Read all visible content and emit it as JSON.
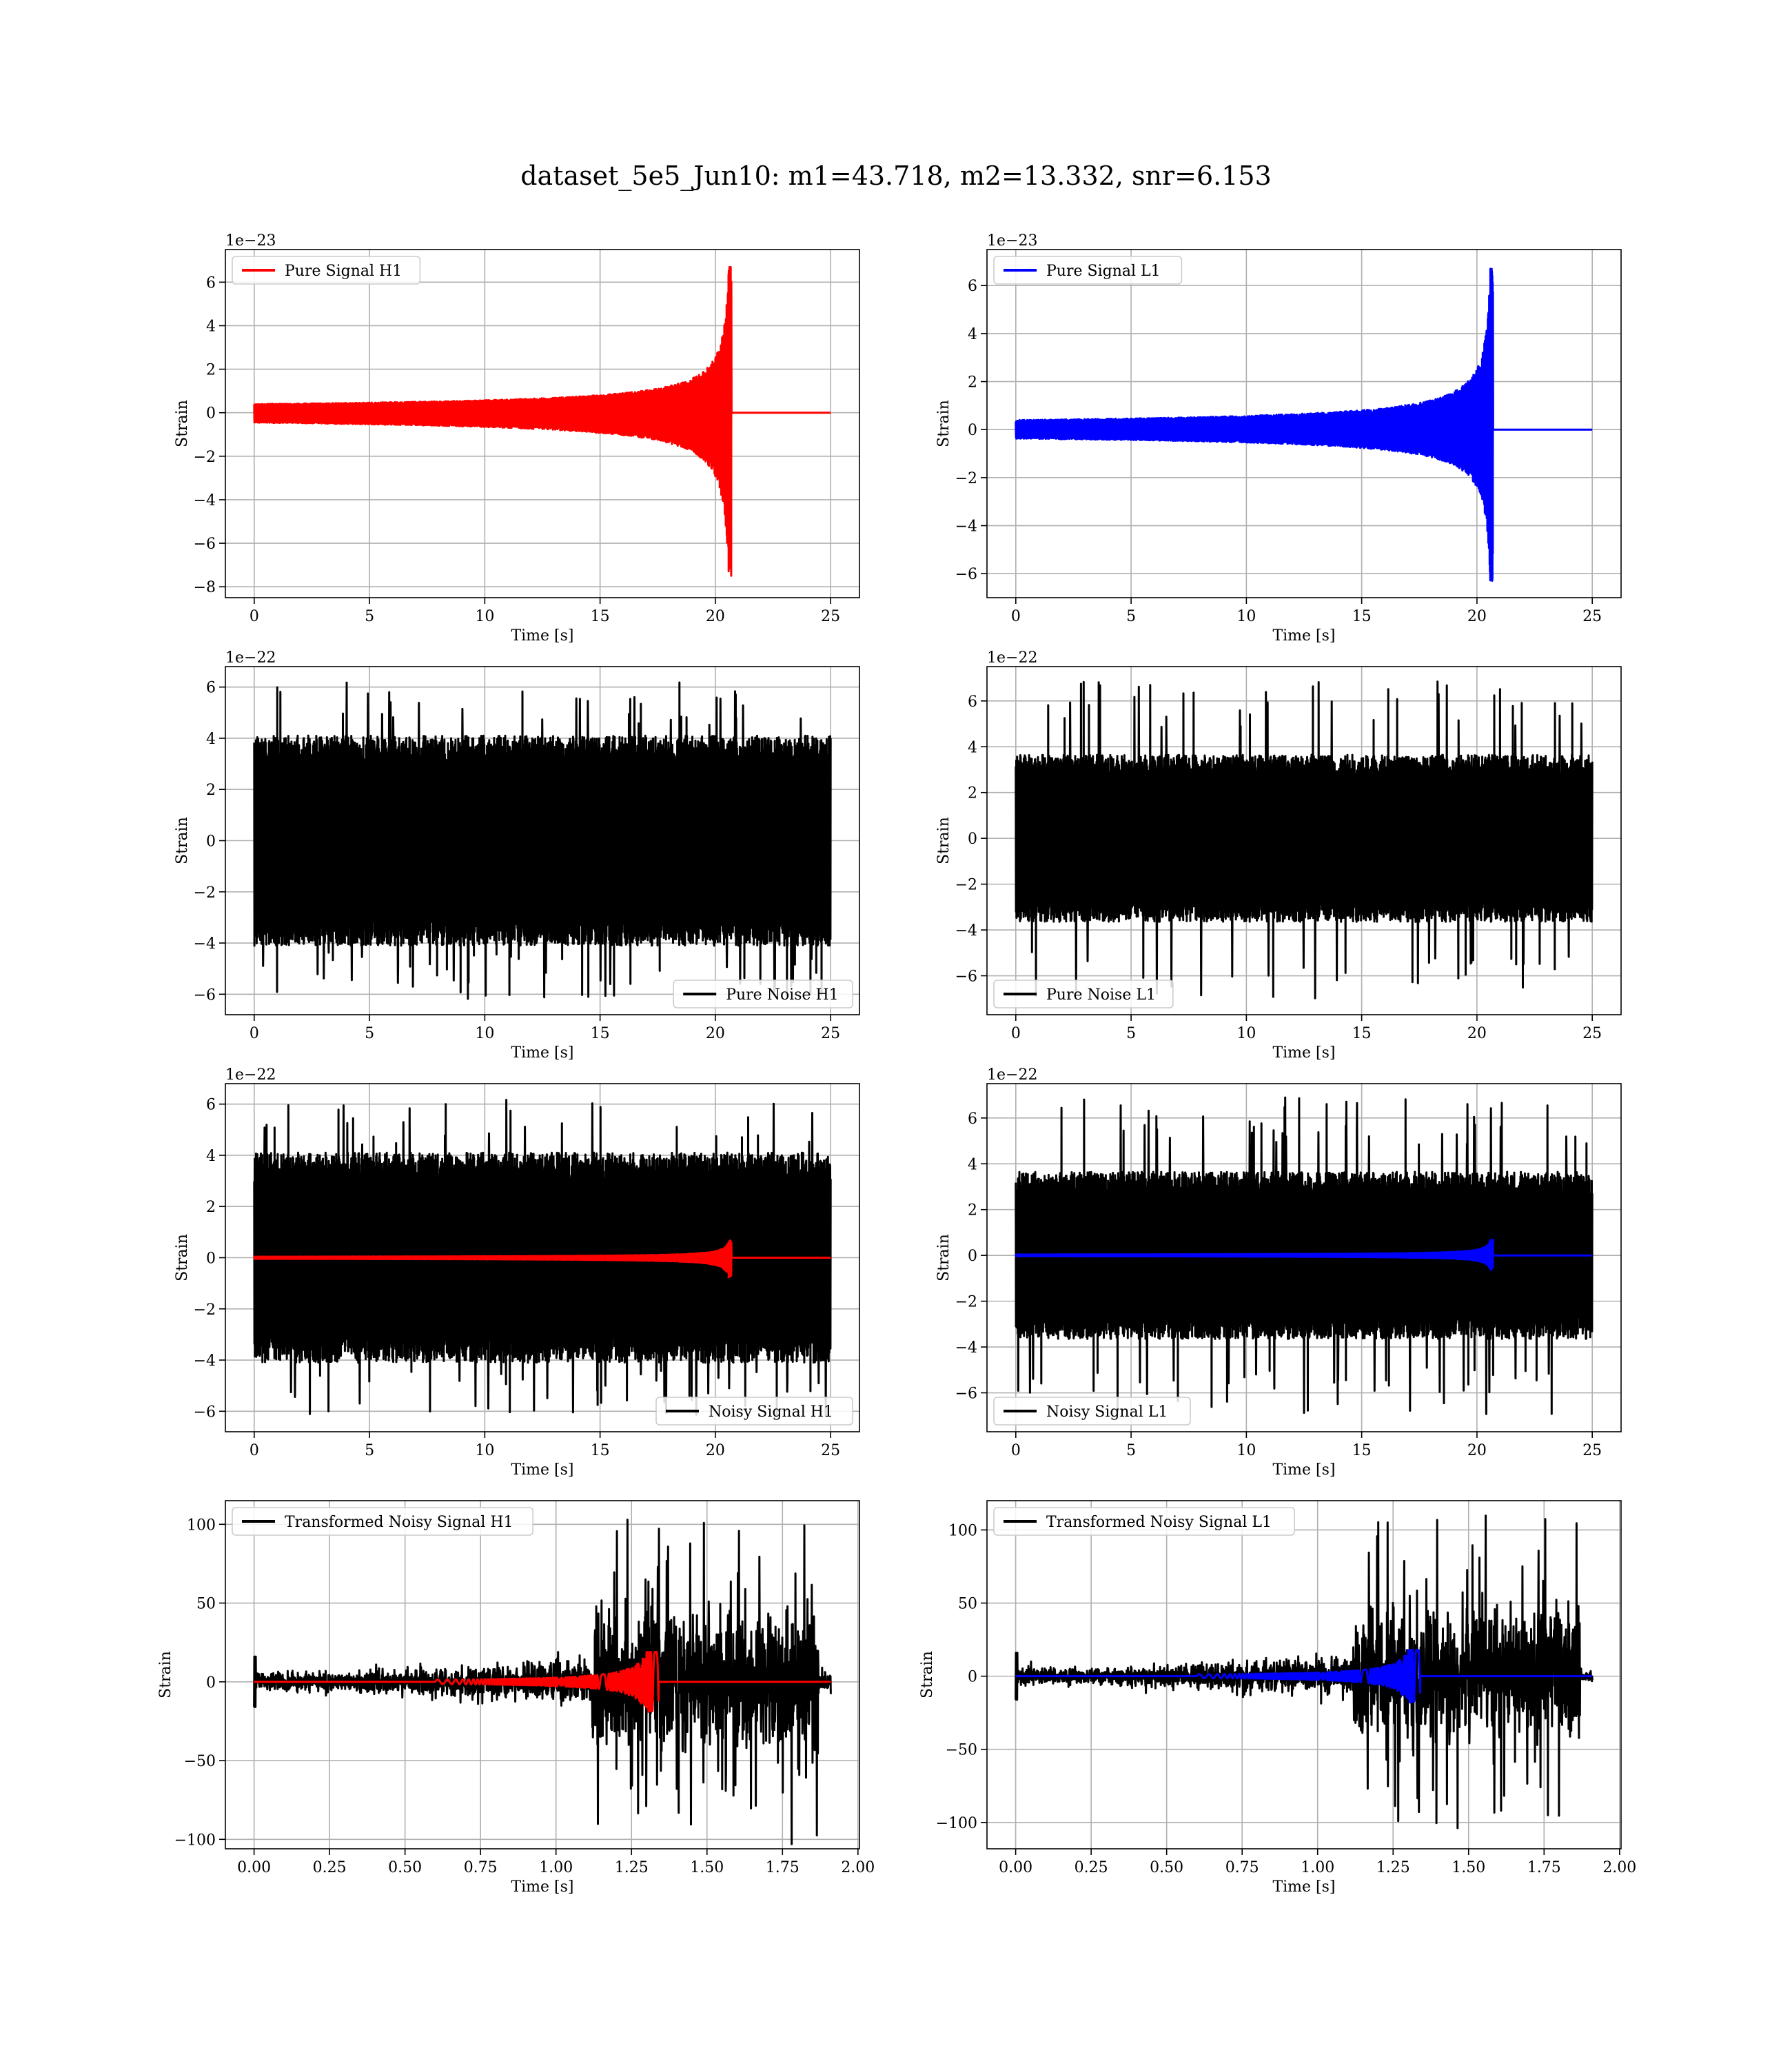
{
  "title": "dataset_5e5_Jun10: m1=43.718, m2=13.332, snr=6.153",
  "chart_data": [
    {
      "type": "line",
      "id": "pure-signal-h1",
      "xlabel": "Time [s]",
      "ylabel": "Strain",
      "offset_text": "1e−23",
      "xlim": [
        -1.25,
        26.25
      ],
      "ylim": [
        -8.5,
        7.5
      ],
      "xticks": [
        0,
        5,
        10,
        15,
        20,
        25
      ],
      "yticks": [
        -8,
        -6,
        -4,
        -2,
        0,
        2,
        4,
        6
      ],
      "grid": true,
      "legend": "upper left",
      "series": [
        {
          "name": "Pure Signal H1",
          "color": "#ff0000",
          "kind": "chirp",
          "t_start": 0,
          "t_end": 25,
          "t_merger": 20.7,
          "peak_pos": 6.8,
          "peak_neg": -7.8
        }
      ]
    },
    {
      "type": "line",
      "id": "pure-signal-l1",
      "xlabel": "Time [s]",
      "ylabel": "Strain",
      "offset_text": "1e−23",
      "xlim": [
        -1.25,
        26.25
      ],
      "ylim": [
        -7.0,
        7.5
      ],
      "xticks": [
        0,
        5,
        10,
        15,
        20,
        25
      ],
      "yticks": [
        -6,
        -4,
        -2,
        0,
        2,
        4,
        6
      ],
      "grid": true,
      "legend": "upper left",
      "series": [
        {
          "name": "Pure Signal L1",
          "color": "#0000ff",
          "kind": "chirp",
          "t_start": 0,
          "t_end": 25,
          "t_merger": 20.7,
          "peak_pos": 6.8,
          "peak_neg": -6.4
        }
      ]
    },
    {
      "type": "line",
      "id": "pure-noise-h1",
      "xlabel": "Time [s]",
      "ylabel": "Strain",
      "offset_text": "1e−22",
      "xlim": [
        -1.25,
        26.25
      ],
      "ylim": [
        -6.8,
        6.8
      ],
      "xticks": [
        0,
        5,
        10,
        15,
        20,
        25
      ],
      "yticks": [
        -6,
        -4,
        -2,
        0,
        2,
        4,
        6
      ],
      "grid": true,
      "legend": "lower right",
      "series": [
        {
          "name": "Pure Noise H1",
          "color": "#000000",
          "kind": "noise",
          "t_start": 0,
          "t_end": 25,
          "band_pos": 3.6,
          "band_neg": -3.6,
          "max": 6.2,
          "min": -6.2
        }
      ]
    },
    {
      "type": "line",
      "id": "pure-noise-l1",
      "xlabel": "Time [s]",
      "ylabel": "Strain",
      "offset_text": "1e−22",
      "xlim": [
        -1.25,
        26.25
      ],
      "ylim": [
        -7.7,
        7.5
      ],
      "xticks": [
        0,
        5,
        10,
        15,
        20,
        25
      ],
      "yticks": [
        -6,
        -4,
        -2,
        0,
        2,
        4,
        6
      ],
      "grid": true,
      "legend": "lower left",
      "series": [
        {
          "name": "Pure Noise L1",
          "color": "#000000",
          "kind": "noise",
          "t_start": 0,
          "t_end": 25,
          "band_pos": 3.2,
          "band_neg": -3.2,
          "max": 6.9,
          "min": -7.0
        }
      ]
    },
    {
      "type": "line",
      "id": "noisy-signal-h1",
      "xlabel": "Time [s]",
      "ylabel": "Strain",
      "offset_text": "1e−22",
      "xlim": [
        -1.25,
        26.25
      ],
      "ylim": [
        -6.8,
        6.8
      ],
      "xticks": [
        0,
        5,
        10,
        15,
        20,
        25
      ],
      "yticks": [
        -6,
        -4,
        -2,
        0,
        2,
        4,
        6
      ],
      "grid": true,
      "legend": "lower right",
      "series": [
        {
          "name": "Noisy Signal H1",
          "color": "#000000",
          "kind": "noise",
          "t_start": 0,
          "t_end": 25,
          "band_pos": 3.6,
          "band_neg": -3.6,
          "max": 6.2,
          "min": -6.2
        },
        {
          "color": "#ff0000",
          "kind": "chirp",
          "t_start": 0,
          "t_end": 25,
          "t_merger": 20.7,
          "peak_pos": 0.68,
          "peak_neg": -0.78
        }
      ]
    },
    {
      "type": "line",
      "id": "noisy-signal-l1",
      "xlabel": "Time [s]",
      "ylabel": "Strain",
      "offset_text": "1e−22",
      "xlim": [
        -1.25,
        26.25
      ],
      "ylim": [
        -7.7,
        7.5
      ],
      "xticks": [
        0,
        5,
        10,
        15,
        20,
        25
      ],
      "yticks": [
        -6,
        -4,
        -2,
        0,
        2,
        4,
        6
      ],
      "grid": true,
      "legend": "lower left",
      "series": [
        {
          "name": "Noisy Signal L1",
          "color": "#000000",
          "kind": "noise",
          "t_start": 0,
          "t_end": 25,
          "band_pos": 3.2,
          "band_neg": -3.2,
          "max": 6.9,
          "min": -7.0
        },
        {
          "color": "#0000ff",
          "kind": "chirp",
          "t_start": 0,
          "t_end": 25,
          "t_merger": 20.7,
          "peak_pos": 0.68,
          "peak_neg": -0.64
        }
      ]
    },
    {
      "type": "line",
      "id": "transformed-noisy-signal-h1",
      "xlabel": "Time [s]",
      "ylabel": "Strain",
      "offset_text": "",
      "xlim": [
        -0.095,
        2.005
      ],
      "ylim": [
        -106,
        115
      ],
      "xticks": [
        0.0,
        0.25,
        0.5,
        0.75,
        1.0,
        1.25,
        1.5,
        1.75,
        2.0
      ],
      "xtick_labels": [
        "0.00",
        "0.25",
        "0.50",
        "0.75",
        "1.00",
        "1.25",
        "1.50",
        "1.75",
        "2.00"
      ],
      "yticks": [
        -100,
        -50,
        0,
        50,
        100
      ],
      "grid": true,
      "legend": "upper left",
      "series": [
        {
          "name": "Transformed Noisy Signal H1",
          "color": "#000000",
          "kind": "whitened",
          "t_start": 0,
          "t_end": 1.91,
          "t_jump": 1.12,
          "t_drop": 1.87,
          "band_low": 5,
          "band_high": 40,
          "band_tail": 5,
          "max": 104,
          "min": -104
        },
        {
          "color": "#ff0000",
          "kind": "whitened_chirp",
          "t_start": 0,
          "t_end": 1.91,
          "t_merger": 1.34,
          "peak": 19
        }
      ]
    },
    {
      "type": "line",
      "id": "transformed-noisy-signal-l1",
      "xlabel": "Time [s]",
      "ylabel": "Strain",
      "offset_text": "",
      "xlim": [
        -0.095,
        2.005
      ],
      "ylim": [
        -118,
        120
      ],
      "xticks": [
        0.0,
        0.25,
        0.5,
        0.75,
        1.0,
        1.25,
        1.5,
        1.75,
        2.0
      ],
      "xtick_labels": [
        "0.00",
        "0.25",
        "0.50",
        "0.75",
        "1.00",
        "1.25",
        "1.50",
        "1.75",
        "2.00"
      ],
      "yticks": [
        -100,
        -50,
        0,
        50,
        100
      ],
      "grid": true,
      "legend": "upper left",
      "series": [
        {
          "name": "Transformed Noisy Signal L1",
          "color": "#000000",
          "kind": "whitened",
          "t_start": 0,
          "t_end": 1.91,
          "t_jump": 1.12,
          "t_drop": 1.87,
          "band_low": 5,
          "band_high": 40,
          "band_tail": 3,
          "max": 110,
          "min": -110
        },
        {
          "color": "#0000ff",
          "kind": "whitened_chirp",
          "t_start": 0,
          "t_end": 1.91,
          "t_merger": 1.34,
          "peak": 18
        }
      ]
    }
  ]
}
